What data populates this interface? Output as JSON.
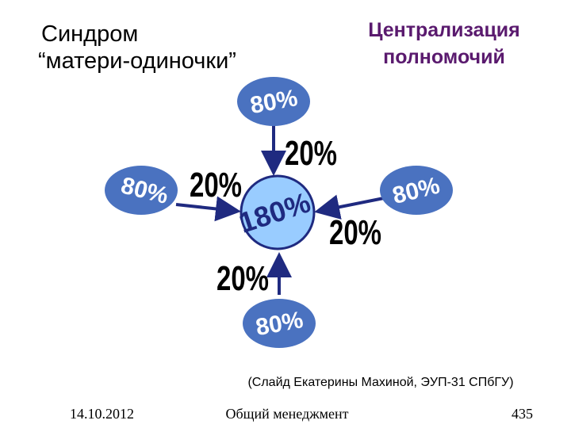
{
  "header": {
    "title_lines": [
      "Синдром",
      "“матери-одиночки”"
    ],
    "heading_lines": [
      "Централизация",
      "полномочий"
    ]
  },
  "nodes": [
    {
      "label": "180%"
    },
    {
      "label": "80%"
    },
    {
      "label": "80%"
    },
    {
      "label": "80%"
    },
    {
      "label": "80%"
    }
  ],
  "edges": [
    {
      "label": "20%"
    },
    {
      "label": "20%"
    },
    {
      "label": "20%"
    },
    {
      "label": "20%"
    }
  ],
  "caption": "(Слайд Екатерины Махиной, ЭУП-31 СПбГУ)",
  "footer": {
    "date": "14.10.2012",
    "subject": "Общий менеджмент",
    "page": "435"
  }
}
